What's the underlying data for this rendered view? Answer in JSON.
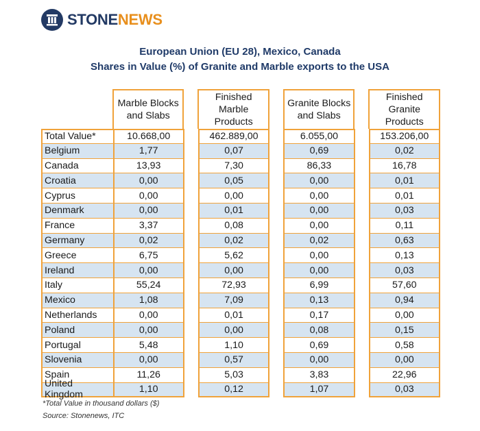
{
  "logo": {
    "part1": "STONE",
    "part2": "NEWS"
  },
  "title": {
    "line1": "European Union (EU 28), Mexico, Canada",
    "line2": "Shares in Value (%) of Granite and Marble exports to the USA"
  },
  "table": {
    "headers": [
      "Marble Blocks and Slabs",
      "Finished Marble Products",
      "Granite Blocks and Slabs",
      "Finished Granite Products"
    ],
    "rows": [
      {
        "label": "Total Value*",
        "values": [
          "10.668,00",
          "462.889,00",
          "6.055,00",
          "153.206,00"
        ]
      },
      {
        "label": "Belgium",
        "values": [
          "1,77",
          "0,07",
          "0,69",
          "0,02"
        ]
      },
      {
        "label": "Canada",
        "values": [
          "13,93",
          "7,30",
          "86,33",
          "16,78"
        ]
      },
      {
        "label": "Croatia",
        "values": [
          "0,00",
          "0,05",
          "0,00",
          "0,01"
        ]
      },
      {
        "label": "Cyprus",
        "values": [
          "0,00",
          "0,00",
          "0,00",
          "0,01"
        ]
      },
      {
        "label": "Denmark",
        "values": [
          "0,00",
          "0,01",
          "0,00",
          "0,03"
        ]
      },
      {
        "label": "France",
        "values": [
          "3,37",
          "0,08",
          "0,00",
          "0,11"
        ]
      },
      {
        "label": "Germany",
        "values": [
          "0,02",
          "0,02",
          "0,02",
          "0,63"
        ]
      },
      {
        "label": "Greece",
        "values": [
          "6,75",
          "5,62",
          "0,00",
          "0,13"
        ]
      },
      {
        "label": "Ireland",
        "values": [
          "0,00",
          "0,00",
          "0,00",
          "0,03"
        ]
      },
      {
        "label": "Italy",
        "values": [
          "55,24",
          "72,93",
          "6,99",
          "57,60"
        ]
      },
      {
        "label": "Mexico",
        "values": [
          "1,08",
          "7,09",
          "0,13",
          "0,94"
        ]
      },
      {
        "label": "Netherlands",
        "values": [
          "0,00",
          "0,01",
          "0,17",
          "0,00"
        ]
      },
      {
        "label": "Poland",
        "values": [
          "0,00",
          "0,00",
          "0,08",
          "0,15"
        ]
      },
      {
        "label": "Portugal",
        "values": [
          "5,48",
          "1,10",
          "0,69",
          "0,58"
        ]
      },
      {
        "label": "Slovenia",
        "values": [
          "0,00",
          "0,57",
          "0,00",
          "0,00"
        ]
      },
      {
        "label": "Spain",
        "values": [
          "11,26",
          "5,03",
          "3,83",
          "22,96"
        ]
      },
      {
        "label": "United Kingdom",
        "values": [
          "1,10",
          "0,12",
          "1,07",
          "0,03"
        ]
      }
    ]
  },
  "footnotes": {
    "note": "*Total Value in thousand dollars ($)",
    "source": "Source: Stonenews, ITC"
  },
  "colors": {
    "navy": "#233a64",
    "orange": "#e88f1d",
    "border": "#f0a23a",
    "shade": "#d6e4f1"
  }
}
